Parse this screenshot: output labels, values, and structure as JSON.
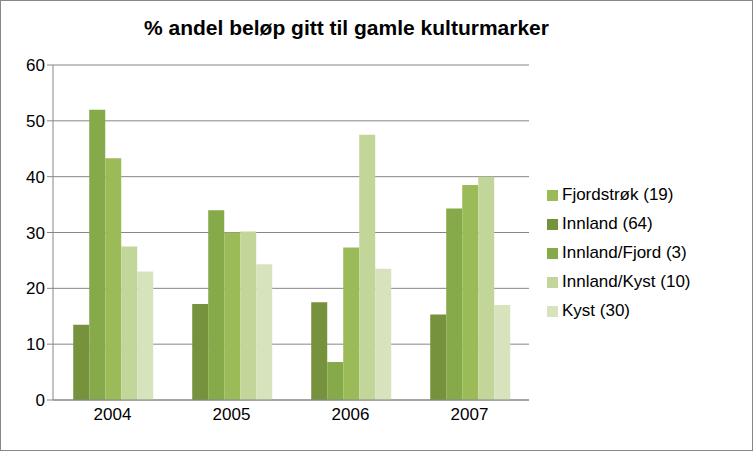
{
  "chart_data": {
    "type": "bar",
    "title": "% andel beløp gitt til gamle kulturmarker",
    "categories": [
      "2004",
      "2005",
      "2006",
      "2007"
    ],
    "series": [
      {
        "name": "Innland (64)",
        "color": "#76923c",
        "values": [
          13.5,
          17.2,
          17.5,
          15.3
        ]
      },
      {
        "name": "Innland/Fjord (3)",
        "color": "#86a949",
        "values": [
          52,
          34,
          6.8,
          34.3
        ]
      },
      {
        "name": "Fjordstrøk (19)",
        "color": "#9bbb59",
        "values": [
          43.3,
          30,
          27.3,
          38.5
        ]
      },
      {
        "name": "Innland/Kyst (10)",
        "color": "#c2d69a",
        "values": [
          27.5,
          30.2,
          47.5,
          40
        ]
      },
      {
        "name": "Kyst (30)",
        "color": "#d6e3bc",
        "values": [
          23,
          24.3,
          23.5,
          17
        ]
      }
    ],
    "ylim": [
      0,
      60
    ],
    "yticks": [
      0,
      10,
      20,
      30,
      40,
      50,
      60
    ],
    "grid": true,
    "legend": "right"
  }
}
